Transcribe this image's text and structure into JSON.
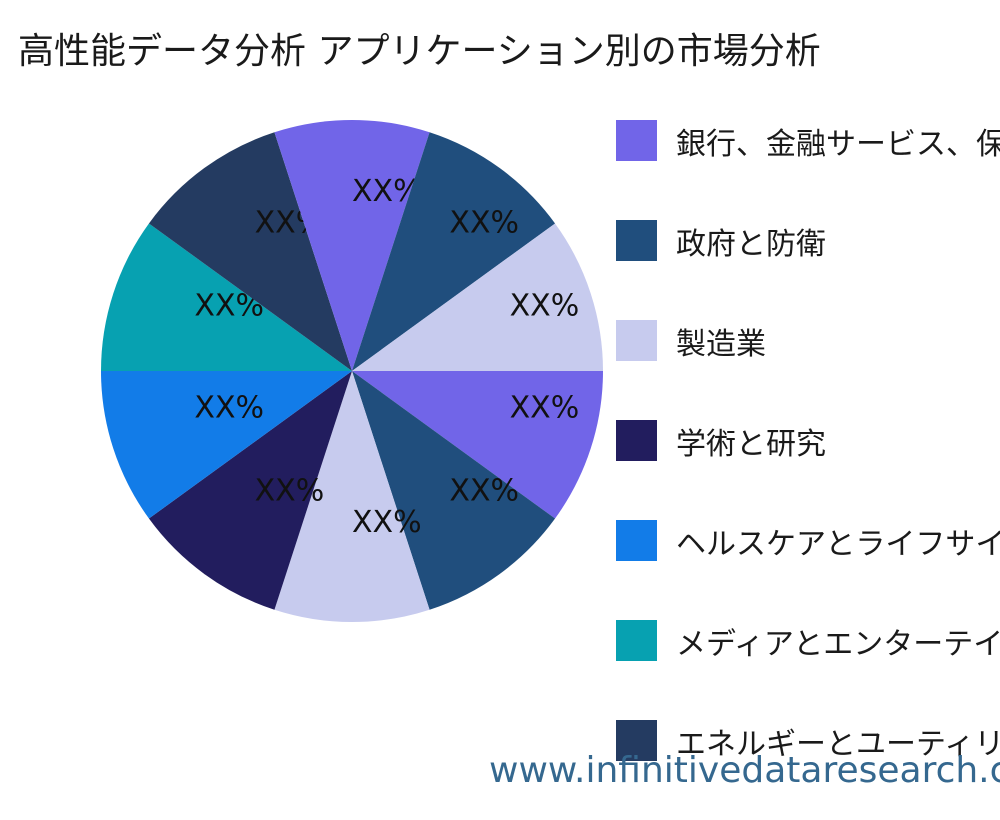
{
  "title": "高性能データ分析 アプリケーション別の市場分析",
  "watermark": "www.infinitivedataresearch.com",
  "chart_data": {
    "type": "pie",
    "title": "高性能データ分析 アプリケーション別の市場分析",
    "legend_position": "right",
    "direction": "clockwise",
    "start_angle_deg": 0,
    "slice_angle_deg": 36,
    "data_label_text": "XX%",
    "values_shown_as_placeholder": true,
    "categories": [
      "銀行、金融サービス、保険",
      "政府と防衛",
      "製造業",
      "学術と研究",
      "ヘルスケアとライフサイエンス",
      "メディアとエンターテインメント",
      "エネルギーとユーティリティ"
    ],
    "palette": [
      "#7165E8",
      "#204E7D",
      "#C7CBEE",
      "#221D5E",
      "#127CE8",
      "#07A1B1",
      "#243B61"
    ],
    "slices": [
      {
        "category_index": 0,
        "label": "XX%",
        "value": 10
      },
      {
        "category_index": 1,
        "label": "XX%",
        "value": 10
      },
      {
        "category_index": 2,
        "label": "XX%",
        "value": 10
      },
      {
        "category_index": 3,
        "label": "XX%",
        "value": 10
      },
      {
        "category_index": 4,
        "label": "XX%",
        "value": 10
      },
      {
        "category_index": 5,
        "label": "XX%",
        "value": 10
      },
      {
        "category_index": 6,
        "label": "XX%",
        "value": 10
      },
      {
        "category_index": 0,
        "label": "XX%",
        "value": 10
      },
      {
        "category_index": 1,
        "label": "XX%",
        "value": 10
      },
      {
        "category_index": 2,
        "label": "XX%",
        "value": 10
      }
    ]
  }
}
